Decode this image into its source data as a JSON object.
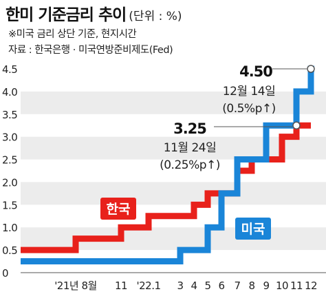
{
  "header": {
    "title": "한미 기준금리 추이",
    "unit": "(단위 : %)",
    "note": "※미국 금리 상단 기준, 현지시간",
    "source": "자료 : 한국은행 · 미국연방준비제도(Fed)"
  },
  "chart_data": {
    "type": "line",
    "step": true,
    "xlabel": "",
    "ylabel": "",
    "ylim": [
      0,
      4.5
    ],
    "yticks": [
      "0",
      "0.5",
      "1.0",
      "1.5",
      "2.0",
      "2.5",
      "3.0",
      "3.5",
      "4.0",
      "4.5"
    ],
    "xtick_labels": [
      "'21년 8월",
      "11",
      "'22.1",
      "3",
      "4",
      "5",
      "6",
      "7",
      "8",
      "9",
      "10",
      "11",
      "12"
    ],
    "grid": "horizontal bands",
    "series": [
      {
        "name": "한국",
        "color": "#e8211b",
        "points": [
          {
            "x": "2021-07",
            "y": 0.5
          },
          {
            "x": "2021-08",
            "y": 0.75
          },
          {
            "x": "2021-11",
            "y": 1.0
          },
          {
            "x": "2022-01",
            "y": 1.25
          },
          {
            "x": "2022-04",
            "y": 1.5
          },
          {
            "x": "2022-05",
            "y": 1.75
          },
          {
            "x": "2022-07",
            "y": 2.25
          },
          {
            "x": "2022-08",
            "y": 2.5
          },
          {
            "x": "2022-10",
            "y": 3.0
          },
          {
            "x": "2022-11",
            "y": 3.25
          },
          {
            "x": "2022-12",
            "y": 3.25
          }
        ]
      },
      {
        "name": "미국",
        "color": "#1a85d8",
        "points": [
          {
            "x": "2021-07",
            "y": 0.25
          },
          {
            "x": "2022-03",
            "y": 0.5
          },
          {
            "x": "2022-05",
            "y": 1.0
          },
          {
            "x": "2022-06",
            "y": 1.75
          },
          {
            "x": "2022-07",
            "y": 2.5
          },
          {
            "x": "2022-09",
            "y": 3.25
          },
          {
            "x": "2022-11",
            "y": 4.0
          },
          {
            "x": "2022-12",
            "y": 4.5
          }
        ]
      }
    ],
    "annotations": [
      {
        "value": "4.50",
        "date": "12월 14일",
        "change": "(0.5%p↑)",
        "series": "미국",
        "x": "2022-12",
        "y": 4.5
      },
      {
        "value": "3.25",
        "date": "11월 24일",
        "change": "(0.25%p↑)",
        "series": "한국",
        "x": "2022-11",
        "y": 3.25
      }
    ],
    "series_labels": [
      {
        "text": "한국",
        "color": "#e8211b"
      },
      {
        "text": "미국",
        "color": "#1a85d8"
      }
    ]
  }
}
